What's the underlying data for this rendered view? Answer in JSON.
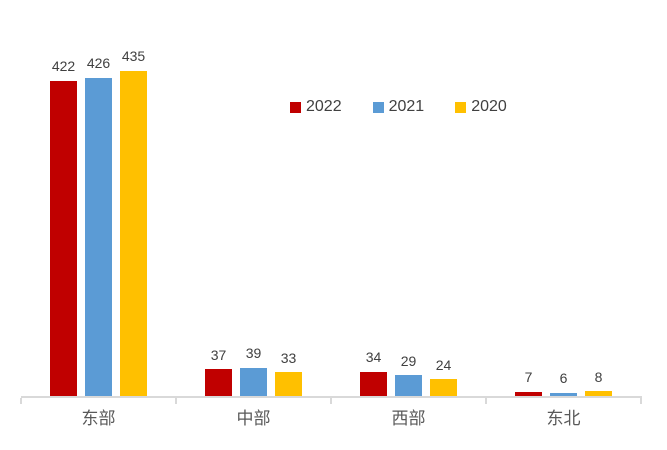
{
  "chart_data": {
    "type": "bar",
    "title": "",
    "xlabel": "",
    "ylabel": "",
    "categories": [
      "东部",
      "中部",
      "西部",
      "东北"
    ],
    "series": [
      {
        "name": "2022",
        "color": "#C00000",
        "values": [
          422,
          37,
          34,
          7
        ]
      },
      {
        "name": "2021",
        "color": "#5B9BD5",
        "values": [
          426,
          39,
          29,
          6
        ]
      },
      {
        "name": "2020",
        "color": "#FFC000",
        "values": [
          435,
          33,
          24,
          8
        ]
      }
    ],
    "ylim": [
      0,
      450
    ],
    "grid": false,
    "y_axis_visible": false,
    "data_labels": true,
    "legend_position": "top-right"
  },
  "colors": {
    "background": "#FFFFFF",
    "axis": "#D9D9D9",
    "data_label_text": "#404040",
    "legend_text": "#404040",
    "category_label_text": "#595959"
  }
}
